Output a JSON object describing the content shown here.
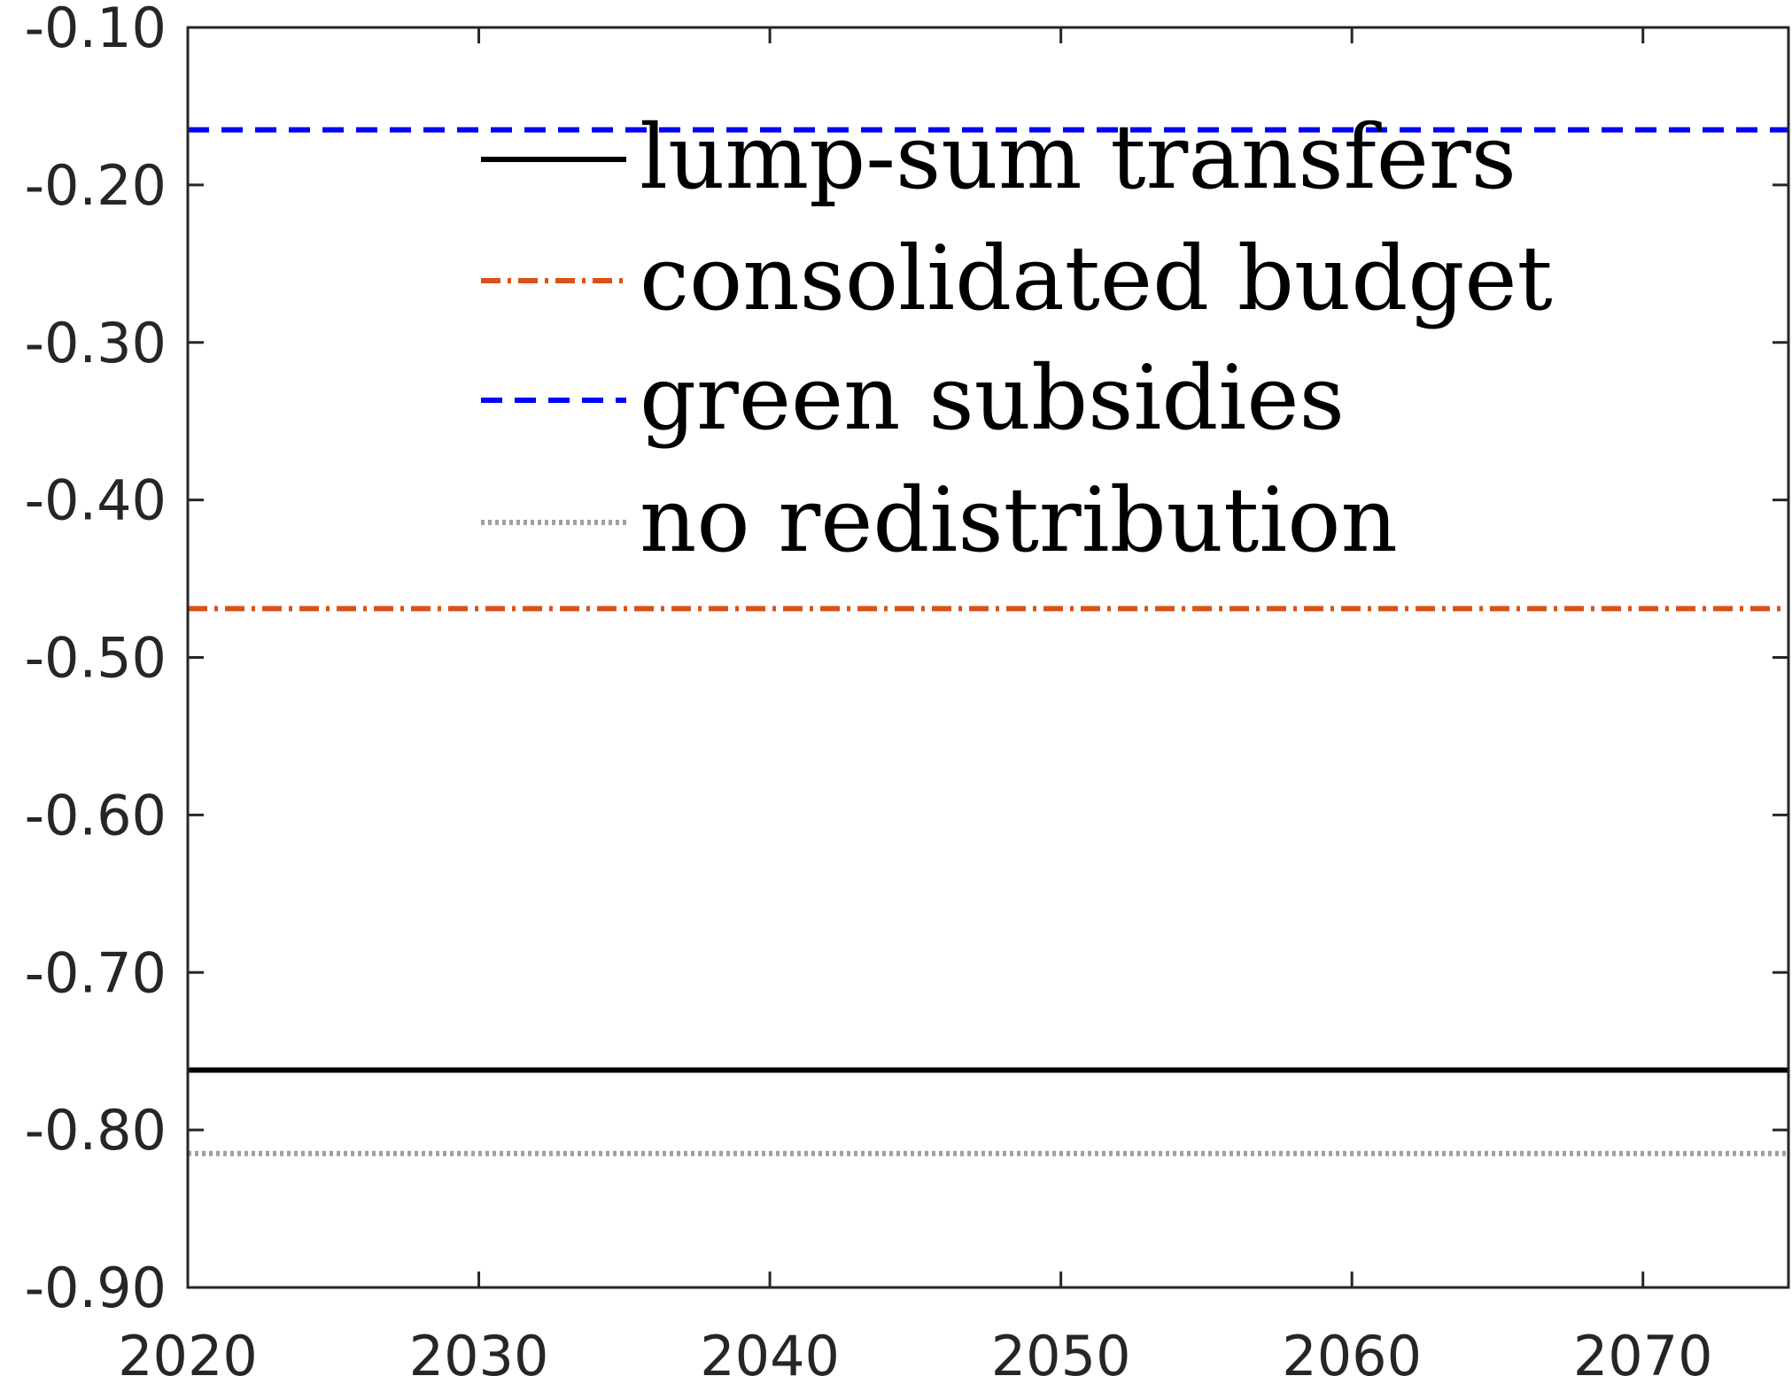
{
  "chart_data": {
    "type": "line",
    "title": "",
    "xlabel": "",
    "ylabel": "",
    "xlim": [
      2020,
      2075
    ],
    "ylim": [
      -0.9,
      -0.1
    ],
    "grid": false,
    "x_ticks": [
      "2020",
      "2030",
      "2040",
      "2050",
      "2060",
      "2070"
    ],
    "x_tick_values": [
      2020,
      2030,
      2040,
      2050,
      2060,
      2070
    ],
    "y_ticks": [
      "-0.10",
      "-0.20",
      "-0.30",
      "-0.40",
      "-0.50",
      "-0.60",
      "-0.70",
      "-0.80",
      "-0.90"
    ],
    "y_tick_values": [
      -0.1,
      -0.2,
      -0.3,
      -0.4,
      -0.5,
      -0.6,
      -0.7,
      -0.8,
      -0.9
    ],
    "legend_position": "top-center",
    "series": [
      {
        "name": "lump-sum transfers",
        "color": "#000000",
        "style": "solid",
        "x": [
          2020,
          2075
        ],
        "y": [
          -0.762,
          -0.762
        ]
      },
      {
        "name": "consolidated budget",
        "color": "#D95319",
        "style": "dashdot",
        "x": [
          2020,
          2075
        ],
        "y": [
          -0.469,
          -0.469
        ]
      },
      {
        "name": "green subsidies",
        "color": "#0000FF",
        "style": "dashed",
        "x": [
          2020,
          2075
        ],
        "y": [
          -0.165,
          -0.165
        ]
      },
      {
        "name": "no redistribution",
        "color": "#A0A0A0",
        "style": "dotted",
        "x": [
          2020,
          2075
        ],
        "y": [
          -0.815,
          -0.815
        ]
      }
    ]
  }
}
